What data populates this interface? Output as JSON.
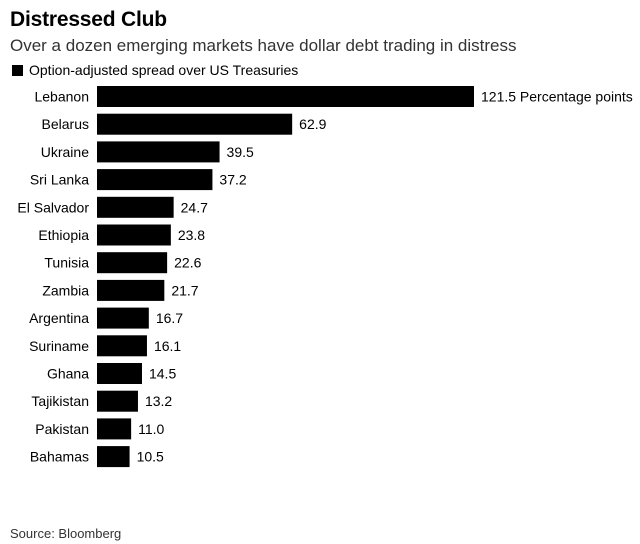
{
  "title": "Distressed Club",
  "subtitle": "Over a dozen emerging markets have dollar debt trading in distress",
  "source": "Source: Bloomberg",
  "colors": {
    "bar": "#000000",
    "text": "#000000"
  },
  "chart_data": {
    "type": "bar",
    "orientation": "horizontal",
    "title": "Distressed Club",
    "subtitle": "Over a dozen emerging markets have dollar debt trading in distress",
    "legend": [
      "Option-adjusted spread over US Treasuries"
    ],
    "legend_placement": "top-left",
    "grid": false,
    "xlim": [
      0,
      121.5
    ],
    "unit_label": "Percentage points",
    "categories": [
      "Lebanon",
      "Belarus",
      "Ukraine",
      "Sri Lanka",
      "El Salvador",
      "Ethiopia",
      "Tunisia",
      "Zambia",
      "Argentina",
      "Suriname",
      "Ghana",
      "Tajikistan",
      "Pakistan",
      "Bahamas"
    ],
    "series": [
      {
        "name": "Option-adjusted spread over US Treasuries",
        "values": [
          121.5,
          62.9,
          39.5,
          37.2,
          24.7,
          23.8,
          22.6,
          21.7,
          16.7,
          16.1,
          14.5,
          13.2,
          11.0,
          10.5
        ],
        "labels": [
          "121.5",
          "62.9",
          "39.5",
          "37.2",
          "24.7",
          "23.8",
          "22.6",
          "21.7",
          "16.7",
          "16.1",
          "14.5",
          "13.2",
          "11.0",
          "10.5"
        ]
      }
    ]
  }
}
